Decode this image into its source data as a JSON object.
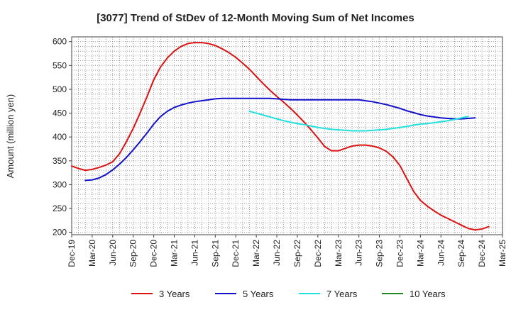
{
  "chart_data": {
    "type": "line",
    "title": "[3077]  Trend of StDev of 12-Month Moving Sum of Net Incomes",
    "ylabel": "Amount (million yen)",
    "xlabel": "",
    "ylim": [
      195,
      610
    ],
    "yticks": [
      200,
      250,
      300,
      350,
      400,
      450,
      500,
      550,
      600
    ],
    "x_start": "2019-12",
    "x_end": "2025-03",
    "xtick_labels": [
      "Dec-19",
      "Mar-20",
      "Jun-20",
      "Sep-20",
      "Dec-20",
      "Mar-21",
      "Jun-21",
      "Sep-21",
      "Dec-21",
      "Mar-22",
      "Jun-22",
      "Sep-22",
      "Dec-22",
      "Mar-23",
      "Jun-23",
      "Sep-23",
      "Dec-23",
      "Mar-24",
      "Jun-24",
      "Sep-24",
      "Dec-24",
      "Mar-25"
    ],
    "grid": true,
    "legend_position": "bottom",
    "series": [
      {
        "name": "3 Years",
        "color": "#dd1111",
        "start": "2019-12",
        "values": [
          339,
          334,
          330,
          332,
          336,
          341,
          348,
          365,
          390,
          418,
          450,
          484,
          520,
          547,
          566,
          580,
          590,
          596,
          598,
          598,
          596,
          592,
          585,
          577,
          567,
          555,
          542,
          527,
          512,
          498,
          485,
          473,
          460,
          446,
          431,
          415,
          398,
          380,
          371,
          371,
          376,
          381,
          383,
          383,
          381,
          377,
          370,
          358,
          340,
          313,
          286,
          267,
          255,
          245,
          236,
          229,
          222,
          215,
          208,
          205,
          207,
          212
        ]
      },
      {
        "name": "5 Years",
        "color": "#1111cc",
        "start": "2020-02",
        "values": [
          309,
          310,
          314,
          321,
          331,
          343,
          357,
          373,
          390,
          408,
          427,
          443,
          454,
          462,
          467,
          471,
          474,
          476,
          478,
          480,
          481,
          481,
          481,
          481,
          481,
          481,
          481,
          481,
          480,
          479,
          478,
          478,
          478,
          478,
          478,
          478,
          478,
          478,
          478,
          478,
          478,
          476,
          474,
          471,
          468,
          464,
          460,
          455,
          451,
          447,
          444,
          442,
          440,
          439,
          438,
          438,
          439,
          440
        ]
      },
      {
        "name": "7 Years",
        "color": "#22e0e0",
        "start": "2022-02",
        "values": [
          454,
          450,
          446,
          442,
          438,
          434,
          431,
          428,
          426,
          423,
          420,
          418,
          416,
          415,
          414,
          413,
          413,
          413,
          414,
          415,
          416,
          418,
          420,
          422,
          425,
          427,
          428,
          430,
          432,
          434,
          437,
          440,
          443
        ]
      },
      {
        "name": "10 Years",
        "color": "#228822",
        "start": "2019-12",
        "values": []
      }
    ]
  }
}
